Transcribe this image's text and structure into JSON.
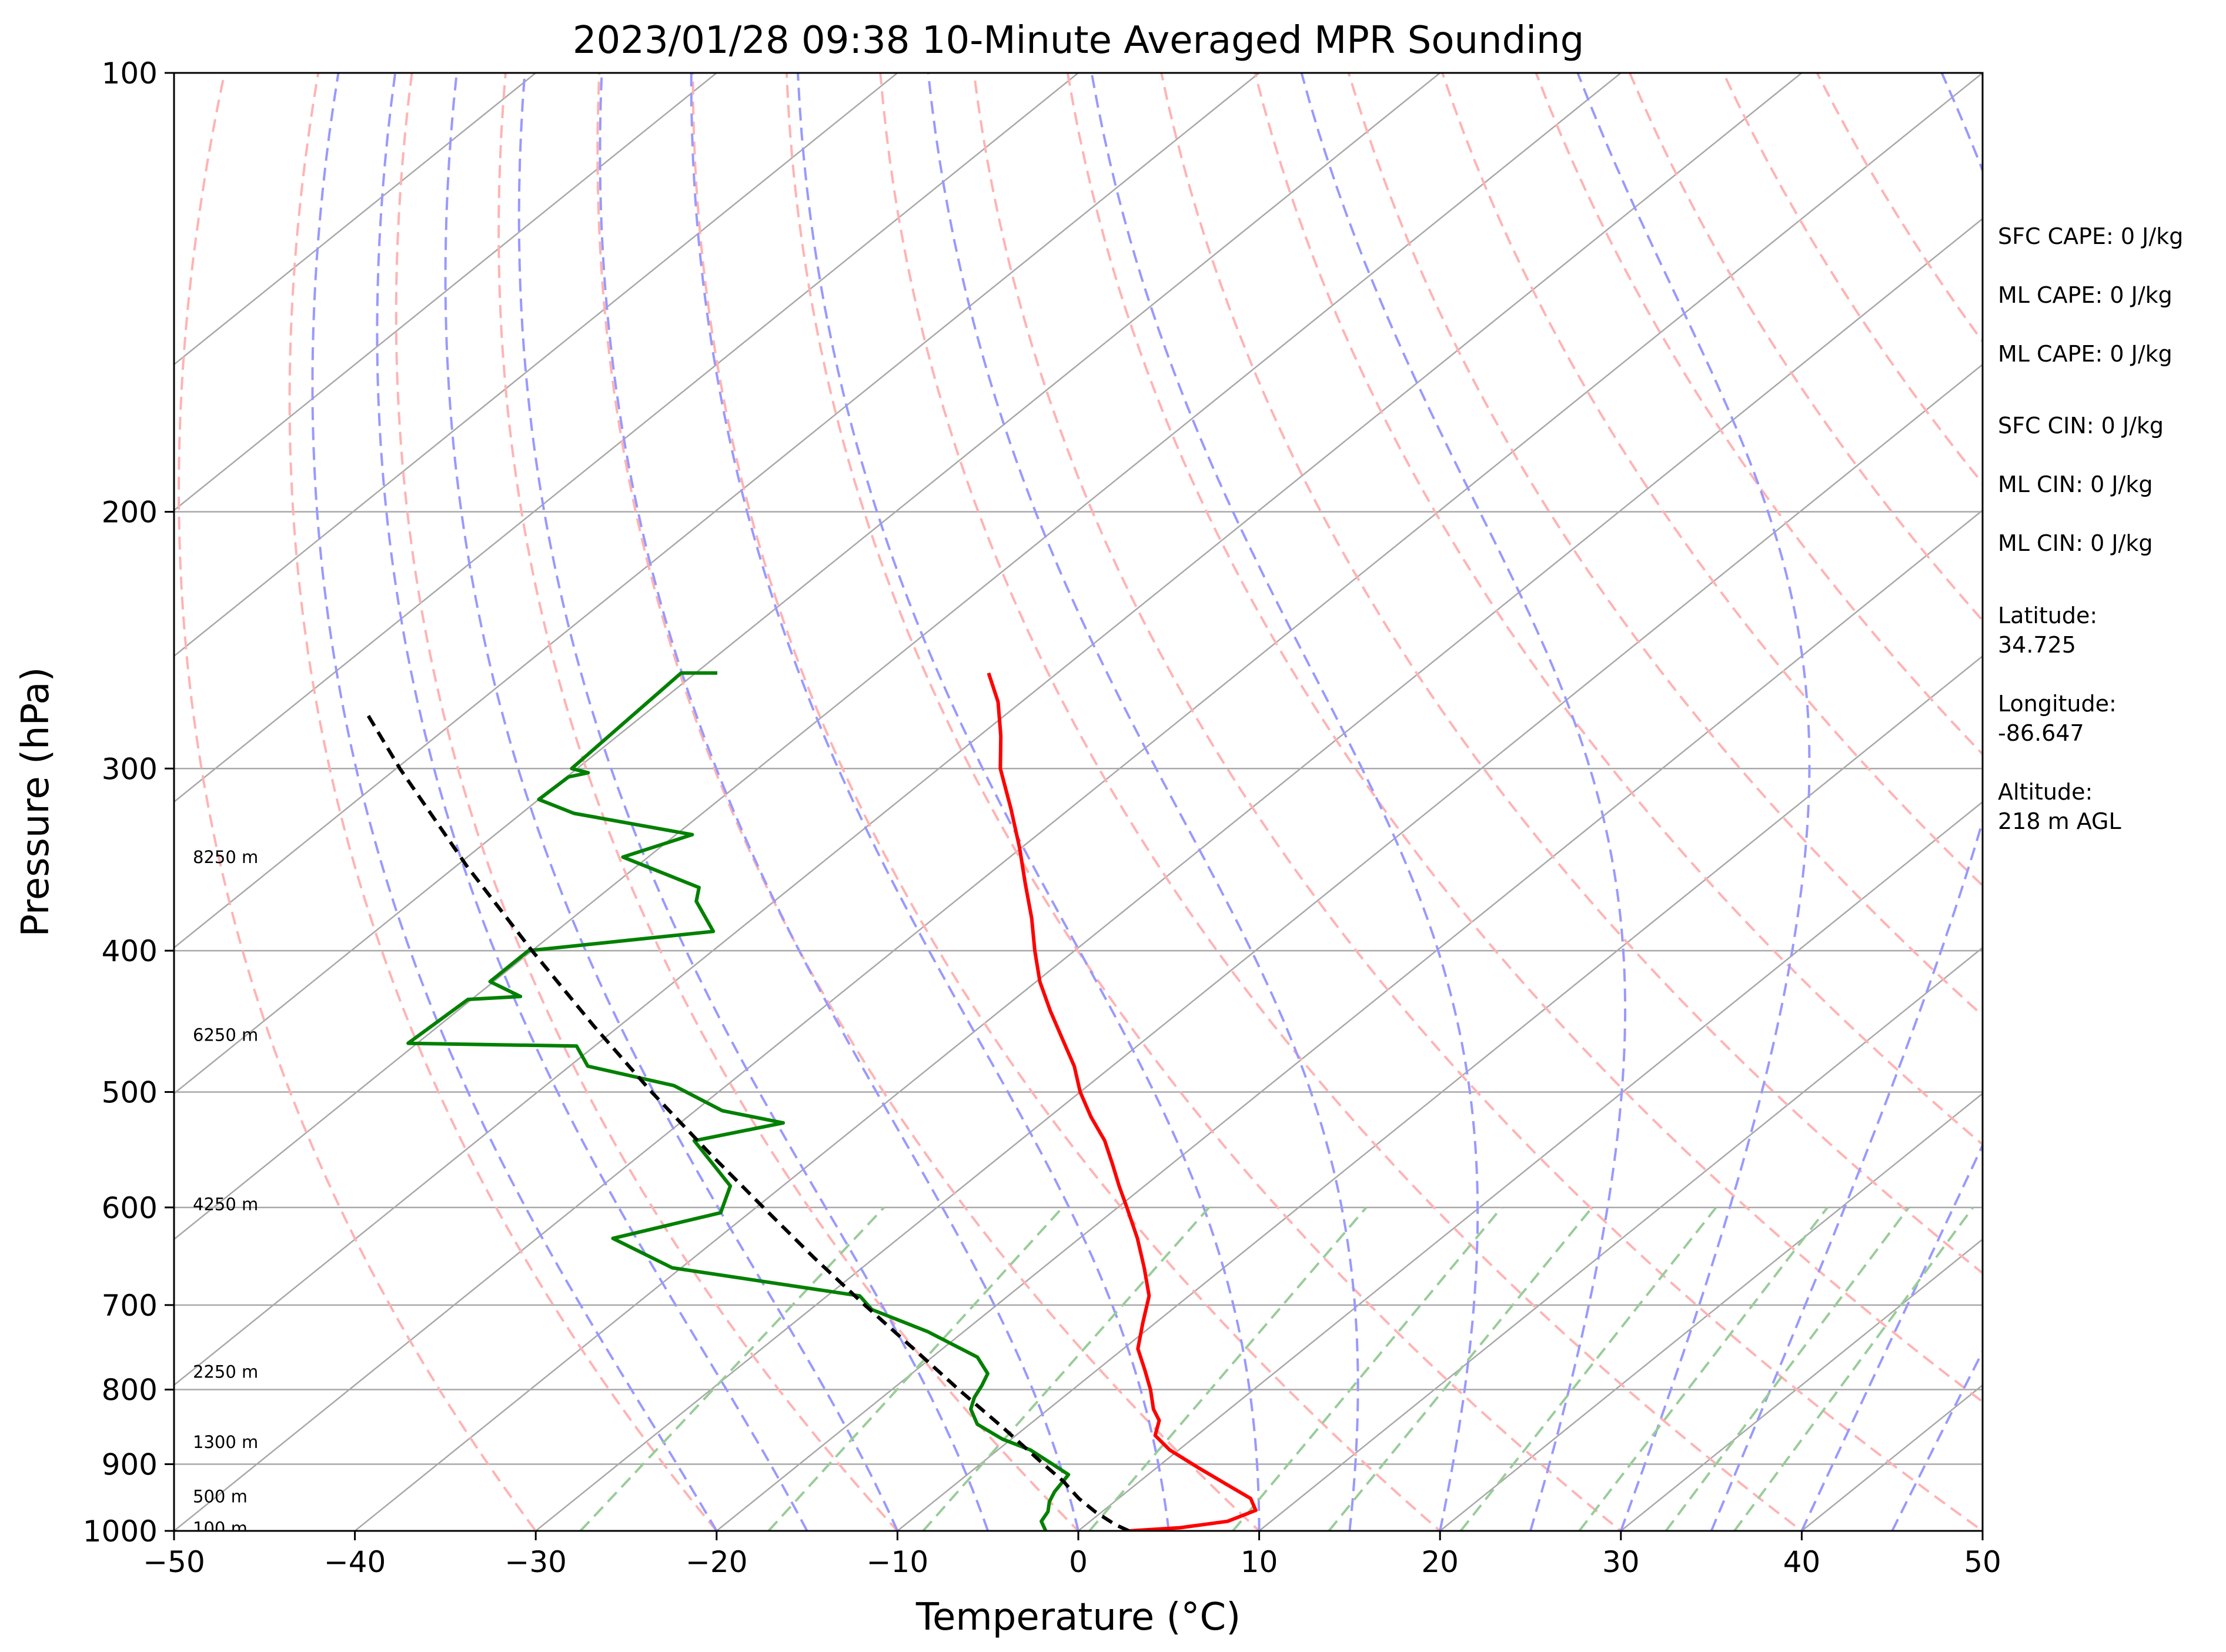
{
  "chart_data": {
    "type": "line",
    "title": "2023/01/28 09:38 10-Minute Averaged MPR Sounding",
    "xlabel": "Temperature (°C)",
    "ylabel": "Pressure (hPa)",
    "xlim": [
      -50,
      50
    ],
    "ylim": [
      1000,
      100
    ],
    "y_scale": "log",
    "skew": "skew-T log-p",
    "grid": true,
    "x_ticks": [
      "−50",
      "−40",
      "−30",
      "−20",
      "−10",
      "0",
      "10",
      "20",
      "30",
      "40",
      "50"
    ],
    "y_ticks": [
      "100",
      "200",
      "300",
      "400",
      "500",
      "600",
      "700",
      "800",
      "900",
      "1000"
    ],
    "series": [
      {
        "color": "#ff0000",
        "points": [
          {
            "p": 1000,
            "t": 2.8
          },
          {
            "p": 995,
            "t": 5.4
          },
          {
            "p": 985,
            "t": 7.6
          },
          {
            "p": 968,
            "t": 8.4
          },
          {
            "p": 950,
            "t": 7.3
          },
          {
            "p": 930,
            "t": 5.1
          },
          {
            "p": 905,
            "t": 2.3
          },
          {
            "p": 880,
            "t": -0.5
          },
          {
            "p": 860,
            "t": -2.3
          },
          {
            "p": 840,
            "t": -3.1
          },
          {
            "p": 825,
            "t": -4.2
          },
          {
            "p": 800,
            "t": -5.7
          },
          {
            "p": 775,
            "t": -7.4
          },
          {
            "p": 750,
            "t": -9.2
          },
          {
            "p": 720,
            "t": -10.7
          },
          {
            "p": 690,
            "t": -12.2
          },
          {
            "p": 660,
            "t": -14.4
          },
          {
            "p": 630,
            "t": -16.8
          },
          {
            "p": 600,
            "t": -19.5
          },
          {
            "p": 580,
            "t": -21.4
          },
          {
            "p": 560,
            "t": -23.3
          },
          {
            "p": 540,
            "t": -25.3
          },
          {
            "p": 520,
            "t": -27.7
          },
          {
            "p": 500,
            "t": -30.0
          },
          {
            "p": 480,
            "t": -32.1
          },
          {
            "p": 460,
            "t": -34.6
          },
          {
            "p": 440,
            "t": -37.2
          },
          {
            "p": 420,
            "t": -39.8
          },
          {
            "p": 400,
            "t": -42.2
          },
          {
            "p": 380,
            "t": -44.6
          },
          {
            "p": 360,
            "t": -47.3
          },
          {
            "p": 340,
            "t": -50.1
          },
          {
            "p": 320,
            "t": -53.2
          },
          {
            "p": 300,
            "t": -56.6
          },
          {
            "p": 285,
            "t": -58.8
          },
          {
            "p": 270,
            "t": -61.3
          },
          {
            "p": 258,
            "t": -63.8
          }
        ]
      },
      {
        "color": "#008000",
        "points": [
          {
            "p": 1000,
            "t": -1.8
          },
          {
            "p": 985,
            "t": -2.7
          },
          {
            "p": 970,
            "t": -3.0
          },
          {
            "p": 955,
            "t": -3.6
          },
          {
            "p": 940,
            "t": -4.0
          },
          {
            "p": 915,
            "t": -4.4
          },
          {
            "p": 900,
            "t": -6.0
          },
          {
            "p": 880,
            "t": -8.2
          },
          {
            "p": 865,
            "t": -10.5
          },
          {
            "p": 845,
            "t": -12.9
          },
          {
            "p": 825,
            "t": -14.3
          },
          {
            "p": 810,
            "t": -14.9
          },
          {
            "p": 795,
            "t": -15.3
          },
          {
            "p": 780,
            "t": -15.8
          },
          {
            "p": 760,
            "t": -17.5
          },
          {
            "p": 730,
            "t": -22.0
          },
          {
            "p": 705,
            "t": -26.6
          },
          {
            "p": 690,
            "t": -28.2
          },
          {
            "p": 660,
            "t": -40.5
          },
          {
            "p": 630,
            "t": -45.8
          },
          {
            "p": 605,
            "t": -41.6
          },
          {
            "p": 580,
            "t": -42.9
          },
          {
            "p": 560,
            "t": -45.4
          },
          {
            "p": 540,
            "t": -48.0
          },
          {
            "p": 525,
            "t": -44.3
          },
          {
            "p": 515,
            "t": -48.5
          },
          {
            "p": 495,
            "t": -52.9
          },
          {
            "p": 480,
            "t": -59.0
          },
          {
            "p": 465,
            "t": -61.0
          },
          {
            "p": 463,
            "t": -70.5
          },
          {
            "p": 432,
            "t": -70.2
          },
          {
            "p": 430,
            "t": -67.5
          },
          {
            "p": 420,
            "t": -70.2
          },
          {
            "p": 400,
            "t": -70.2
          },
          {
            "p": 388,
            "t": -61.3
          },
          {
            "p": 370,
            "t": -64.3
          },
          {
            "p": 362,
            "t": -65.1
          },
          {
            "p": 345,
            "t": -71.4
          },
          {
            "p": 333,
            "t": -69.1
          },
          {
            "p": 322,
            "t": -77.1
          },
          {
            "p": 315,
            "t": -80.0
          },
          {
            "p": 304,
            "t": -79.9
          },
          {
            "p": 302,
            "t": -79.1
          },
          {
            "p": 300,
            "t": -80.3
          },
          {
            "p": 258,
            "t": -80.8
          },
          {
            "p": 258,
            "t": -78.8
          }
        ]
      },
      {
        "color": "#000000",
        "style": "dashed",
        "points": [
          {
            "p": 1000,
            "t": 2.8
          },
          {
            "p": 990,
            "t": 1.6
          },
          {
            "p": 970,
            "t": -0.4
          },
          {
            "p": 950,
            "t": -2.2
          },
          {
            "p": 935,
            "t": -3.4
          },
          {
            "p": 925,
            "t": -4.2
          },
          {
            "p": 900,
            "t": -6.5
          },
          {
            "p": 850,
            "t": -11.2
          },
          {
            "p": 800,
            "t": -16.3
          },
          {
            "p": 750,
            "t": -21.6
          },
          {
            "p": 700,
            "t": -27.3
          },
          {
            "p": 650,
            "t": -33.3
          },
          {
            "p": 600,
            "t": -39.6
          },
          {
            "p": 550,
            "t": -46.4
          },
          {
            "p": 500,
            "t": -53.7
          },
          {
            "p": 450,
            "t": -61.5
          },
          {
            "p": 400,
            "t": -70.0
          },
          {
            "p": 350,
            "t": -79.4
          },
          {
            "p": 300,
            "t": -89.8
          },
          {
            "p": 275,
            "t": -95.4
          }
        ]
      }
    ],
    "height_labels": [
      {
        "p": 996,
        "text": "100 m"
      },
      {
        "p": 947,
        "text": "500 m"
      },
      {
        "p": 869,
        "text": "1300 m"
      },
      {
        "p": 778,
        "text": "2250 m"
      },
      {
        "p": 597,
        "text": "4250 m"
      },
      {
        "p": 457,
        "text": "6250 m"
      },
      {
        "p": 345,
        "text": "8250 m"
      }
    ],
    "dry_adiabats_c": [
      -30,
      -20,
      -10,
      0,
      10,
      20,
      30,
      40,
      50,
      60,
      70,
      80,
      90,
      100,
      110,
      120,
      130,
      140
    ],
    "moist_adiabats_c": [
      -20,
      -15,
      -10,
      -5,
      0,
      5,
      10,
      15,
      20,
      25,
      30,
      35,
      40,
      45
    ],
    "mixing_ratios_gkg": [
      0.4,
      1,
      2,
      4,
      7,
      10,
      16,
      24,
      32,
      40
    ],
    "colors": {
      "temperature": "#ff0000",
      "dewpoint": "#008000",
      "parcel": "#000000",
      "isotherms": "#a8a8a8",
      "dry_adiabats": "#ffb3b3",
      "moist_adiabats": "#9999ff",
      "mixing_ratio": "#99cc99"
    }
  },
  "side_panel": [
    "SFC CAPE: 0 J/kg",
    "ML CAPE: 0 J/kg",
    "ML CAPE: 0 J/kg",
    "SFC CIN: 0 J/kg",
    "ML CIN: 0 J/kg",
    "ML CIN: 0 J/kg",
    "Latitude:",
    "34.725",
    "Longitude:",
    "-86.647",
    "Altitude:",
    "218 m AGL"
  ]
}
